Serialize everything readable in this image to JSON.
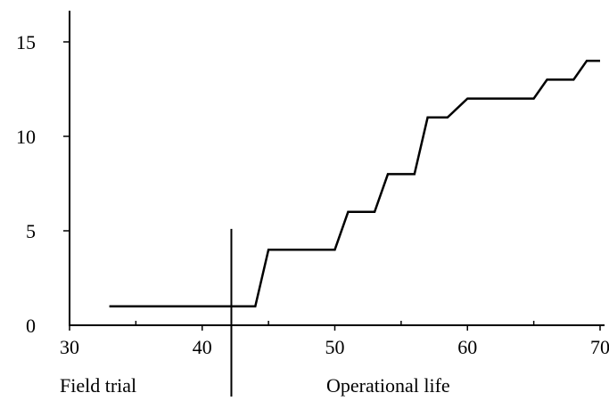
{
  "chart_data": {
    "type": "line",
    "title": "",
    "xlabel": "",
    "ylabel": "",
    "xlim": [
      30,
      70
    ],
    "ylim": [
      0,
      16.5
    ],
    "x_ticks": [
      30,
      40,
      50,
      60,
      70
    ],
    "y_ticks": [
      0,
      5,
      10,
      15
    ],
    "x_tick_labels": [
      "30",
      "40",
      "50",
      "60",
      "70"
    ],
    "y_tick_labels": [
      "0",
      "5",
      "10",
      "15"
    ],
    "x_minor_ticks": [
      35,
      45,
      55,
      65
    ],
    "grid": false,
    "legend": "none",
    "divider": {
      "x": 42.2,
      "y_top": 5.1,
      "region_labels": [
        "Field trial",
        "Operational life"
      ]
    },
    "series": [
      {
        "x": [
          33,
          44,
          45,
          50,
          51,
          53,
          54,
          56,
          57,
          58.5,
          60,
          65,
          66,
          68,
          69,
          70
        ],
        "y": [
          1,
          1,
          4,
          4,
          6,
          6,
          8,
          8,
          11,
          11,
          12,
          12,
          13,
          13,
          14,
          14
        ]
      }
    ],
    "colors": {
      "line": "#000000",
      "axes": "#000000"
    }
  }
}
